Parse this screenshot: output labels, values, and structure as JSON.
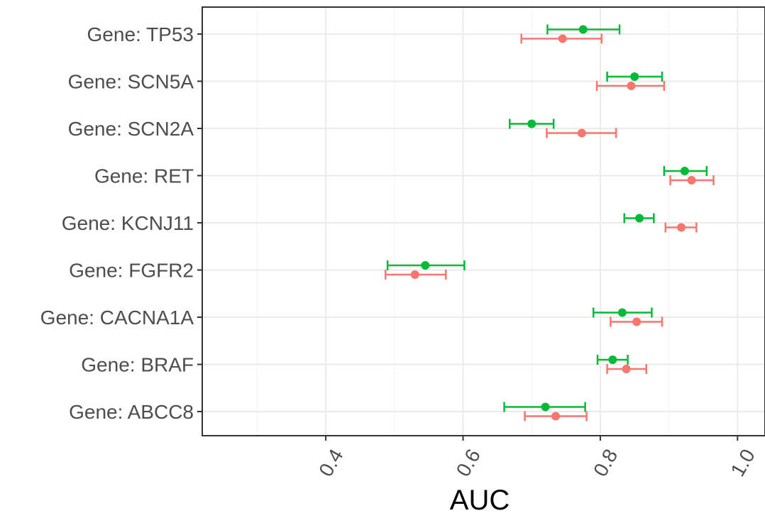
{
  "chart_data": {
    "type": "scatter",
    "subtype": "forest-plot-with-error-bars",
    "title": "",
    "xlabel": "AUC",
    "ylabel": "",
    "xlim": [
      0.22,
      1.04
    ],
    "x_ticks": [
      0.4,
      0.6,
      0.8,
      1.0
    ],
    "x_tick_labels": [
      "0.4",
      "0.6",
      "0.8",
      "1.0"
    ],
    "x_minor_ticks": [
      0.3,
      0.5,
      0.7,
      0.9
    ],
    "categories": [
      "Gene: TP53",
      "Gene: SCN5A",
      "Gene: SCN2A",
      "Gene: RET",
      "Gene: KCNJ11",
      "Gene: FGFR2",
      "Gene: CACNA1A",
      "Gene: BRAF",
      "Gene: ABCC8"
    ],
    "grid": true,
    "legend": "none",
    "series": [
      {
        "color": "#00ba38",
        "position": "upper",
        "values": [
          0.775,
          0.85,
          0.7,
          0.923,
          0.857,
          0.545,
          0.832,
          0.818,
          0.72
        ],
        "lower": [
          0.723,
          0.81,
          0.668,
          0.893,
          0.835,
          0.49,
          0.79,
          0.796,
          0.66
        ],
        "upper": [
          0.828,
          0.89,
          0.732,
          0.955,
          0.878,
          0.602,
          0.875,
          0.84,
          0.778
        ]
      },
      {
        "color": "#f8766d",
        "position": "lower",
        "values": [
          0.745,
          0.845,
          0.773,
          0.933,
          0.918,
          0.53,
          0.853,
          0.838,
          0.735
        ],
        "lower": [
          0.685,
          0.795,
          0.722,
          0.902,
          0.895,
          0.487,
          0.815,
          0.81,
          0.69
        ],
        "upper": [
          0.802,
          0.893,
          0.823,
          0.965,
          0.94,
          0.575,
          0.89,
          0.867,
          0.78
        ]
      }
    ]
  }
}
